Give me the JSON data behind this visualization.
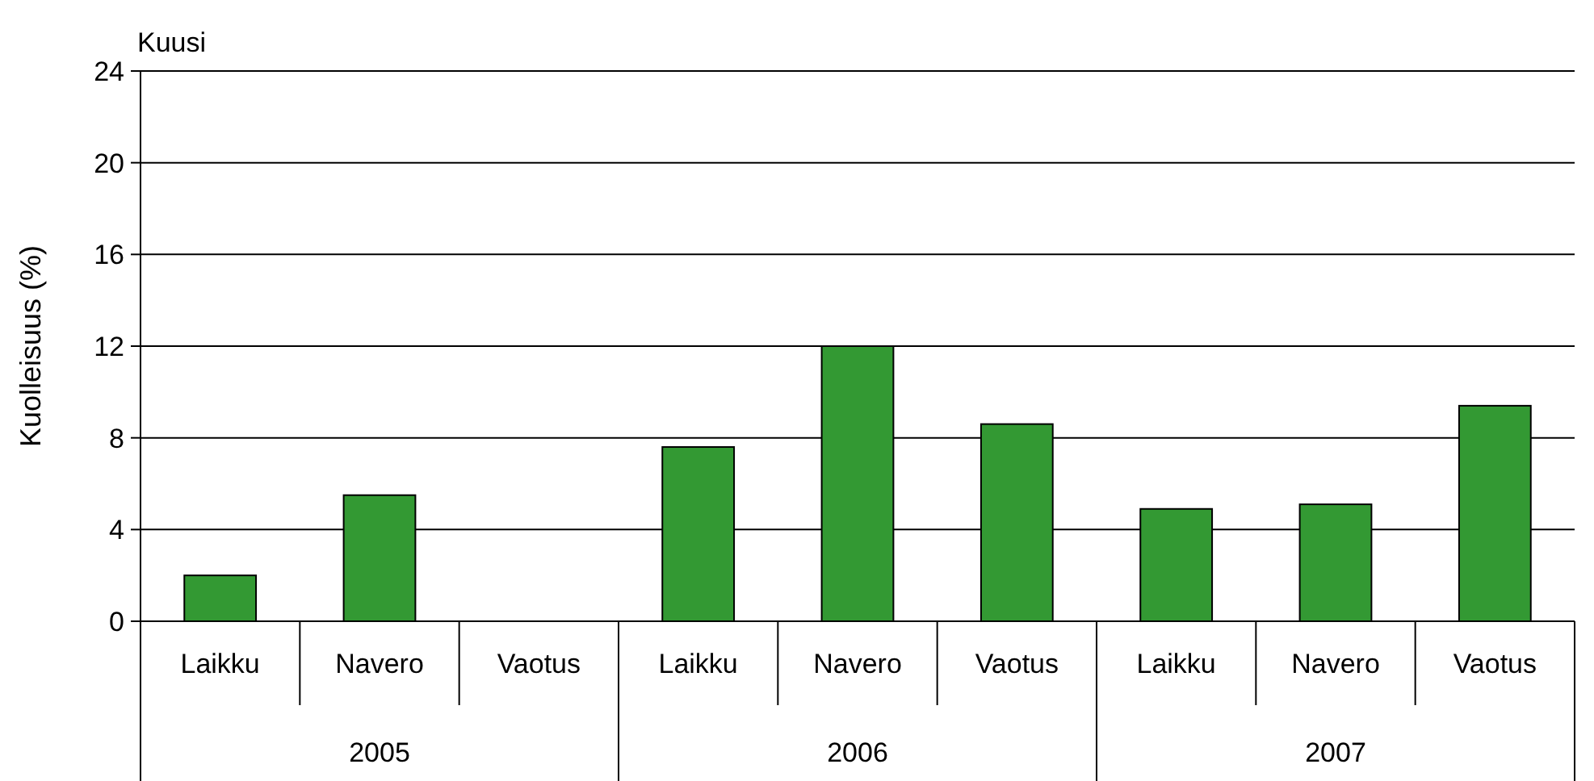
{
  "chart_data": {
    "type": "bar",
    "title": "Kuusi",
    "ylabel": "Kuolleisuus (%)",
    "categories": [
      "Laikku",
      "Navero",
      "Vaotus",
      "Laikku",
      "Navero",
      "Vaotus",
      "Laikku",
      "Navero",
      "Vaotus"
    ],
    "values": [
      2.0,
      5.5,
      0,
      7.6,
      12.0,
      8.6,
      4.9,
      5.1,
      9.4
    ],
    "color": "#339933",
    "ylim": [
      0,
      24
    ],
    "yticks": [
      0,
      4,
      8,
      12,
      16,
      20,
      24
    ],
    "grid": "y",
    "annotations": [
      "2005",
      "2006",
      "2007"
    ]
  }
}
